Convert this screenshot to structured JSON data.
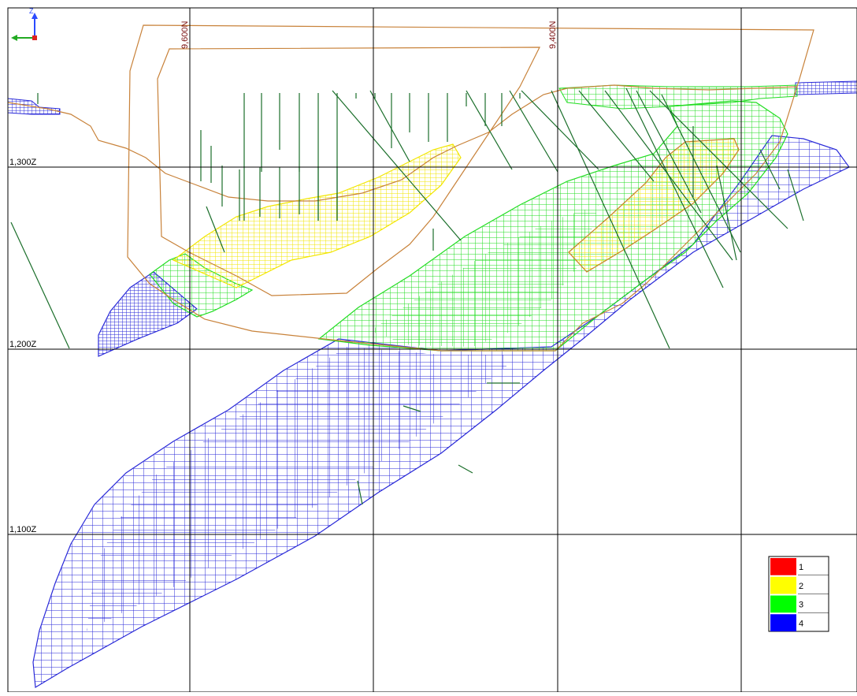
{
  "section": {
    "grid_labels": {
      "easting": [
        "9,600N",
        "9,400N"
      ],
      "elevation": [
        "1,300Z",
        "1,200Z",
        "1,100Z"
      ]
    },
    "axis_triad": {
      "vertical": "Z"
    },
    "legend": {
      "items": [
        {
          "label": "1",
          "color": "#ff0000"
        },
        {
          "label": "2",
          "color": "#ffff00"
        },
        {
          "label": "3",
          "color": "#00ff00"
        },
        {
          "label": "4",
          "color": "#0000ff"
        }
      ]
    },
    "colors": {
      "class_1": "#ff0000",
      "class_2": "#ffee00",
      "class_3": "#22dd22",
      "class_4": "#2a2ad8",
      "pit_outline": "#c8823a",
      "drillholes": "#1a6e2a",
      "grid": "#000000",
      "grid_label_vertical": "#7a1010"
    }
  }
}
